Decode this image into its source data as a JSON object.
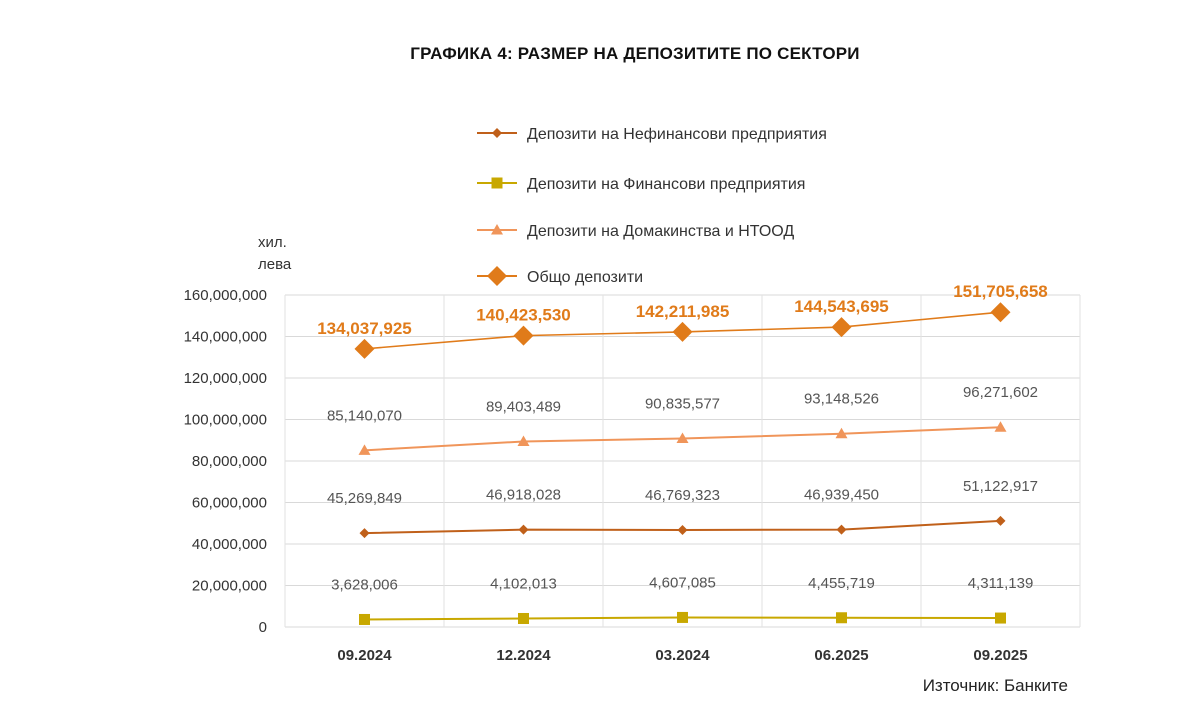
{
  "chart_data": {
    "type": "line",
    "title": "ГРАФИКА 4: РАЗМЕР НА ДЕПОЗИТИТЕ ПО СЕКТОРИ",
    "ylabel": "хил. лева",
    "ylim": [
      0,
      160000000
    ],
    "yticks": [
      0,
      20000000,
      40000000,
      60000000,
      80000000,
      100000000,
      120000000,
      140000000,
      160000000
    ],
    "ytick_labels": [
      "0",
      "20,000,000",
      "40,000,000",
      "60,000,000",
      "80,000,000",
      "100,000,000",
      "120,000,000",
      "140,000,000",
      "160,000,000"
    ],
    "categories": [
      "09.2024",
      "12.2024",
      "03.2024",
      "06.2025",
      "09.2025"
    ],
    "grid": "horizontal and vertical",
    "legend_position": "top-center",
    "series": [
      {
        "name": "Депозити на Нефинансови предприятия",
        "marker": "diamond",
        "color": "#c0601a",
        "values": [
          45269849,
          46918028,
          46769323,
          46939450,
          51122917
        ],
        "labels": [
          "45,269,849",
          "46,918,028",
          "46,769,323",
          "46,939,450",
          "51,122,917"
        ]
      },
      {
        "name": "Депозити на Финансови предприятия",
        "marker": "square",
        "color": "#c8a800",
        "values": [
          3628006,
          4102013,
          4607085,
          4455719,
          4311139
        ],
        "labels": [
          "3,628,006",
          "4,102,013",
          "4,607,085",
          "4,455,719",
          "4,311,139"
        ]
      },
      {
        "name": "Депозити на Домакинства и НТООД",
        "marker": "triangle",
        "color": "#f0955a",
        "values": [
          85140070,
          89403489,
          90835577,
          93148526,
          96271602
        ],
        "labels": [
          "85,140,070",
          "89,403,489",
          "90,835,577",
          "93,148,526",
          "96,271,602"
        ]
      },
      {
        "name": "Общо депозити",
        "marker": "diamond-large",
        "color": "#e07b1a",
        "values": [
          134037925,
          140423530,
          142211985,
          144543695,
          151705658
        ],
        "labels": [
          "134,037,925",
          "140,423,530",
          "142,211,985",
          "144,543,695",
          "151,705,658"
        ]
      }
    ]
  },
  "source": "Източник: Банките"
}
